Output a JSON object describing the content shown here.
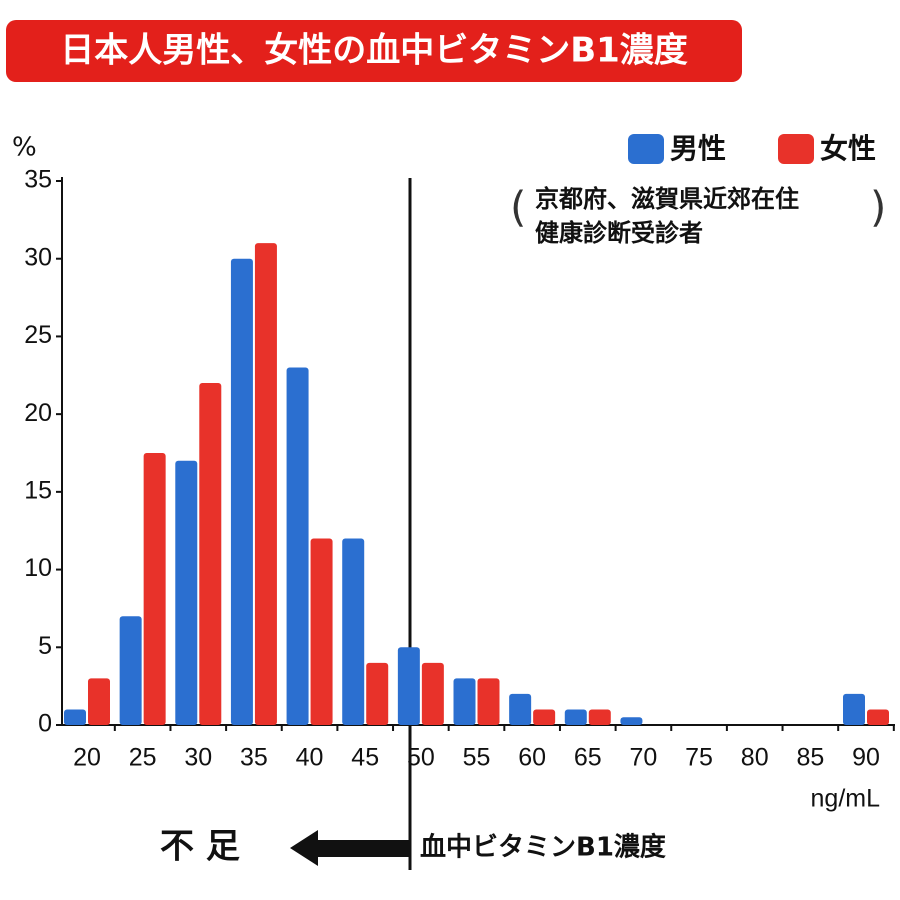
{
  "chart_data": {
    "type": "bar",
    "title": "日本人男性、女性の血中ビタミンB1濃度",
    "y_label": "%",
    "x_label": "ng/mL",
    "annotation": [
      "京都府、滋賀県近郊在住",
      "健康診断受診者"
    ],
    "footer_left": "不 足",
    "footer_right": "血中ビタミンB1濃度",
    "categories": [
      "20",
      "25",
      "30",
      "35",
      "40",
      "45",
      "50",
      "55",
      "60",
      "65",
      "70",
      "75",
      "80",
      "85",
      "90"
    ],
    "series": [
      {
        "name": "男性",
        "color": "#2b6fd0",
        "values": [
          1,
          7,
          17,
          30,
          23,
          12,
          5,
          3,
          2,
          1,
          0.5,
          0,
          0,
          0,
          2
        ]
      },
      {
        "name": "女性",
        "color": "#e8322a",
        "values": [
          3,
          17.5,
          22,
          31,
          12,
          4,
          4,
          3,
          1,
          1,
          0,
          0,
          0,
          0,
          1
        ]
      }
    ],
    "ylim": [
      0,
      35
    ],
    "yticks": [
      0,
      5,
      10,
      15,
      20,
      25,
      30,
      35
    ]
  }
}
